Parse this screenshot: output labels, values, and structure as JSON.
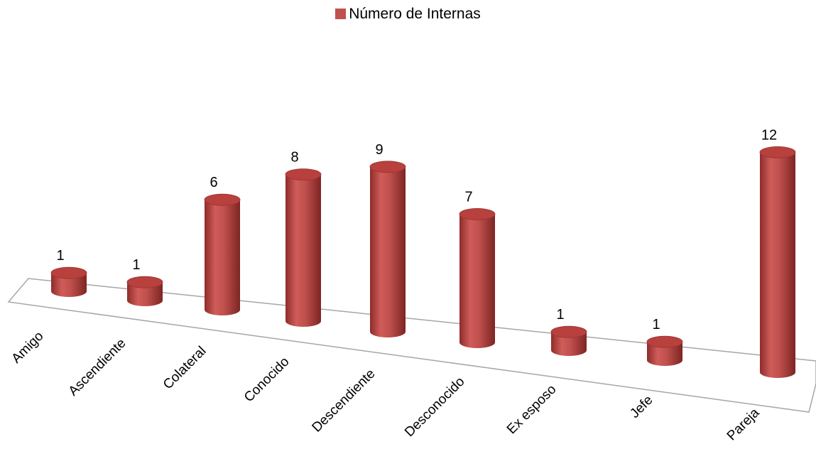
{
  "chart_data": {
    "type": "bar",
    "categories": [
      "Amigo",
      "Ascendiente",
      "Colateral",
      "Conocido",
      "Descendiente",
      "Desconocido",
      "Ex esposo",
      "Jefe",
      "Pareja"
    ],
    "series": [
      {
        "name": "Número de Internas",
        "values": [
          1,
          1,
          6,
          8,
          9,
          7,
          1,
          1,
          12
        ]
      }
    ],
    "data_labels": [
      "1",
      "1",
      "6",
      "8",
      "9",
      "7",
      "1",
      "1",
      "12"
    ],
    "title": "",
    "xlabel": "",
    "ylabel": "",
    "legend_position": "top",
    "grid": false,
    "style": "3d-cylinder",
    "bar_color": "#c0504d"
  }
}
